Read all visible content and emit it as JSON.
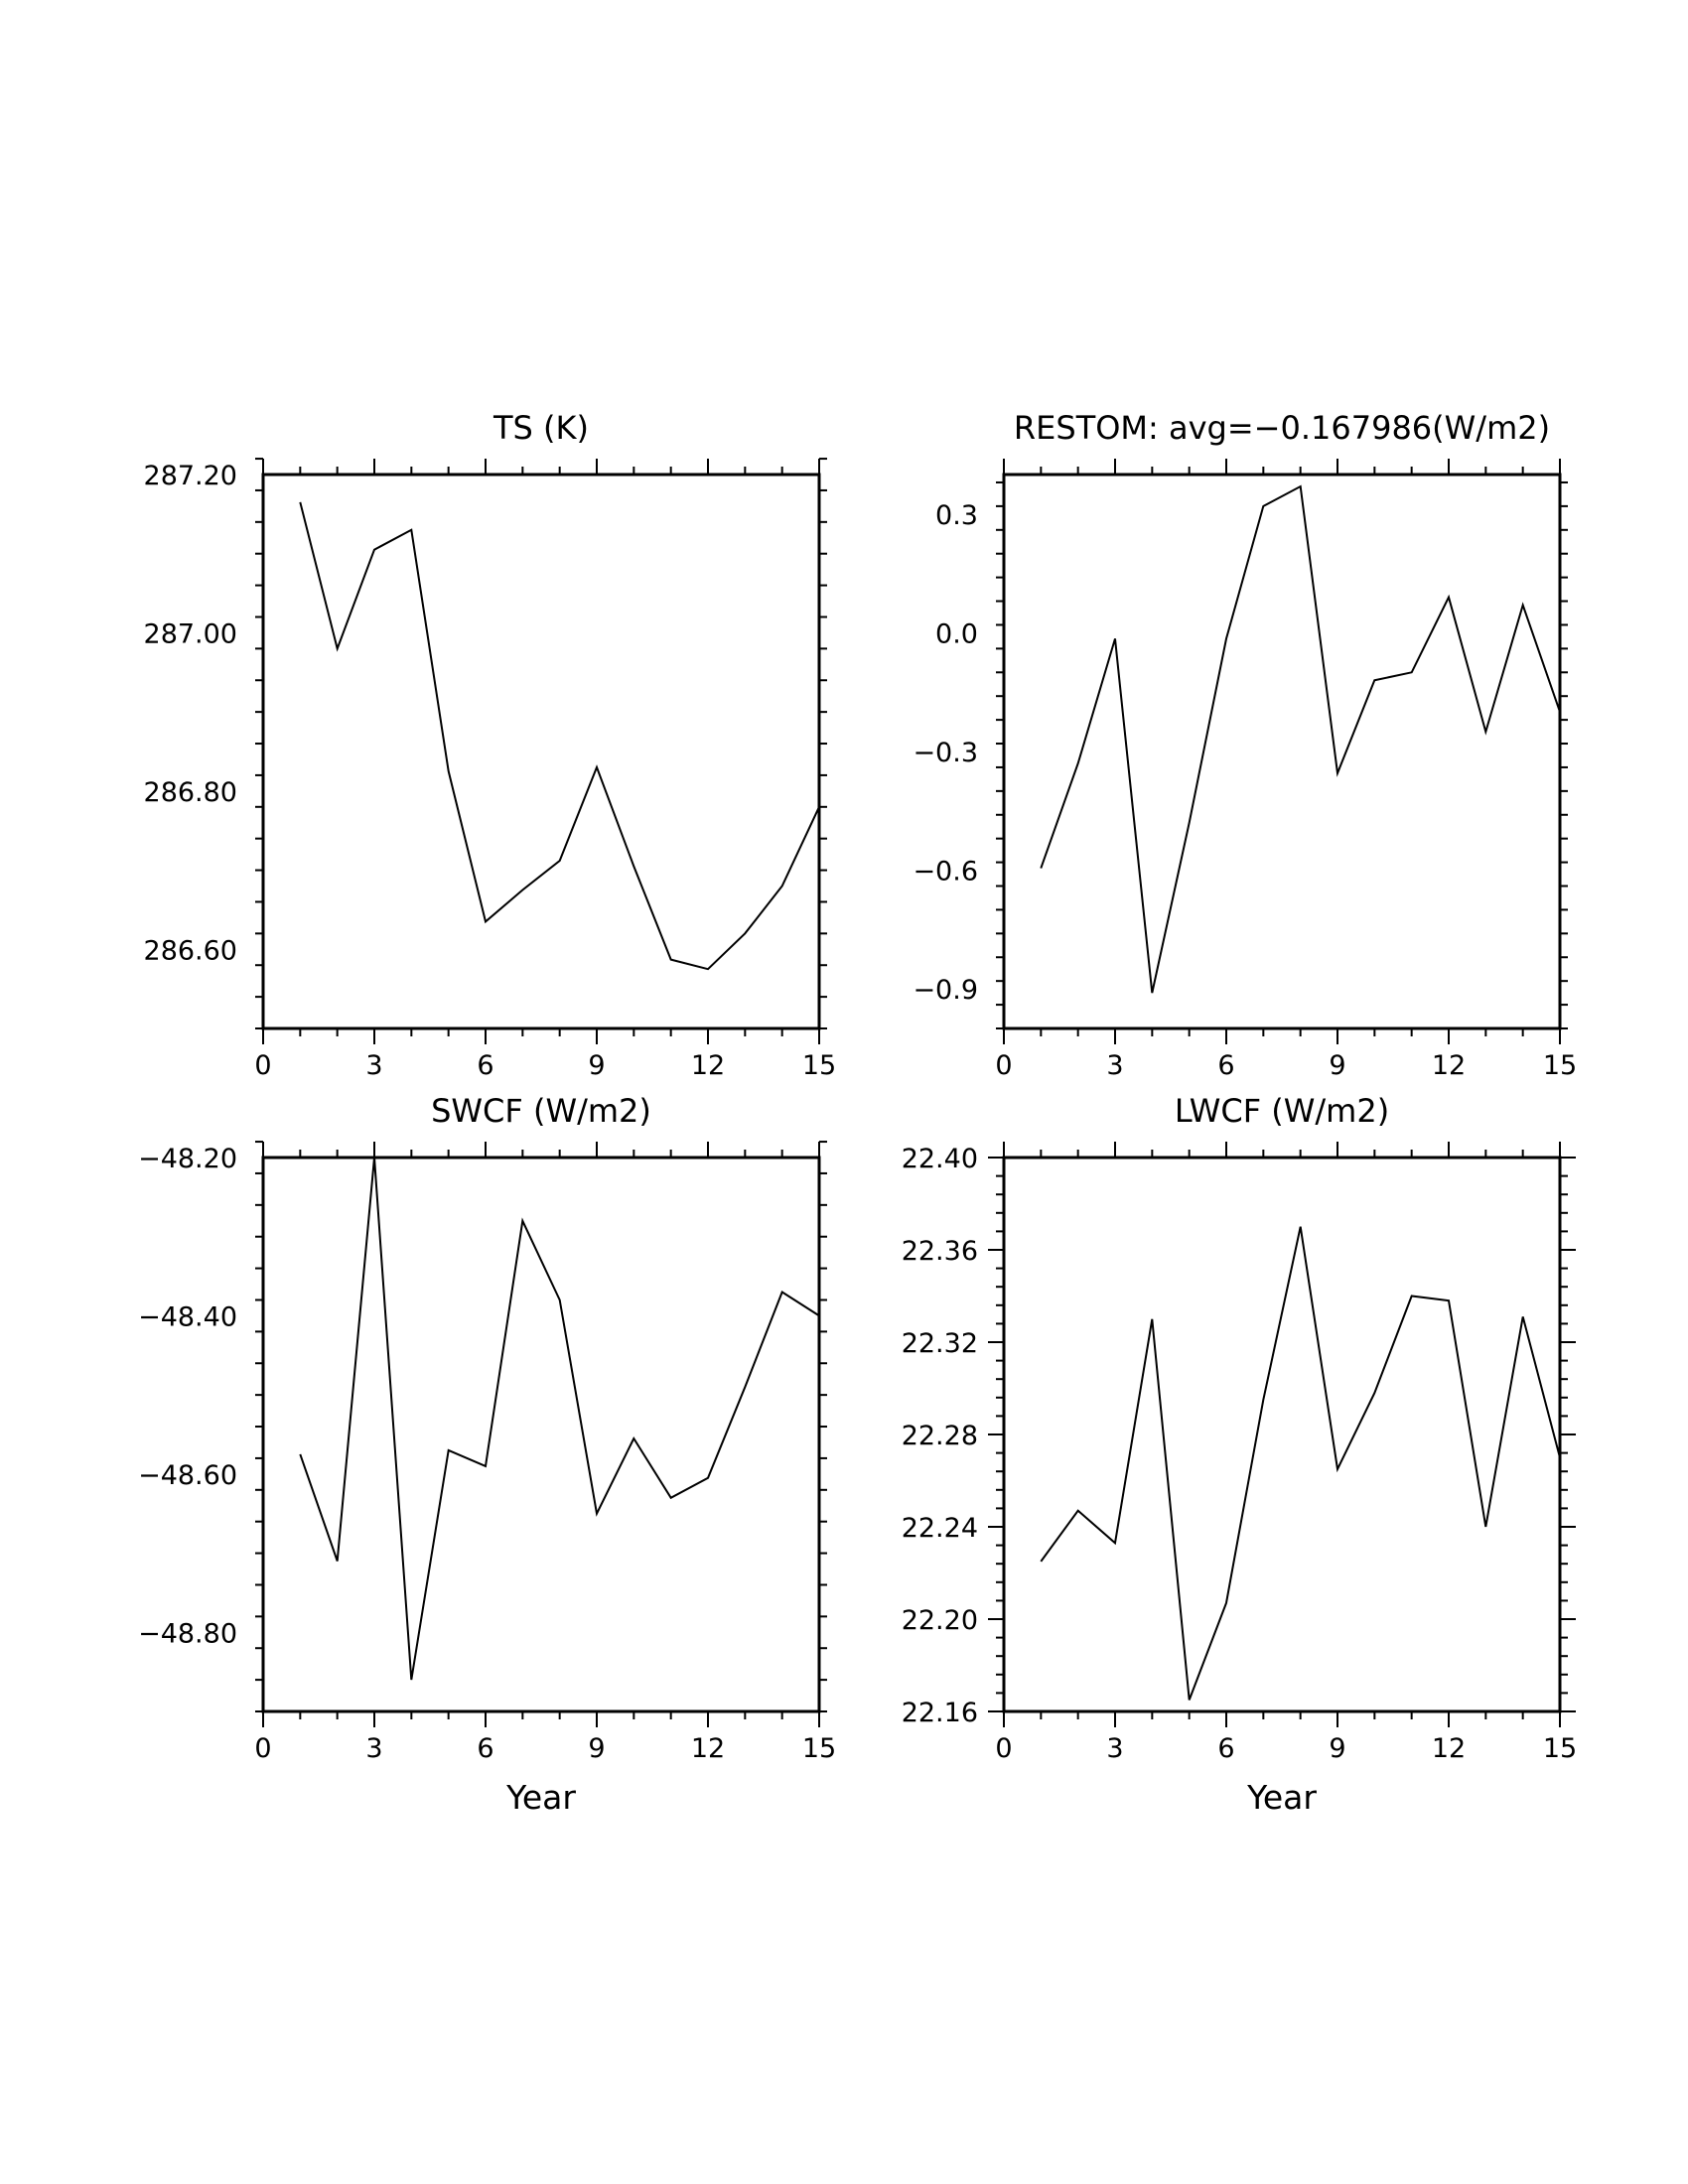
{
  "chart_data": [
    {
      "type": "line",
      "title": "TS (K)",
      "xlabel": "",
      "ylabel": "",
      "xlim": [
        0,
        15
      ],
      "ylim": [
        286.5,
        287.2
      ],
      "xticks": [
        "0",
        "3",
        "6",
        "9",
        "12",
        "15"
      ],
      "yticks": [
        "287.20",
        "287.00",
        "286.80",
        "286.60"
      ],
      "x": [
        1,
        2,
        3,
        4,
        5,
        6,
        7,
        8,
        9,
        10,
        11,
        12,
        13,
        14,
        15
      ],
      "series": [
        {
          "values": [
            287.165,
            286.98,
            287.105,
            287.13,
            286.825,
            286.635,
            286.675,
            286.712,
            286.83,
            286.705,
            286.587,
            286.575,
            286.62,
            286.68,
            286.78
          ]
        }
      ]
    },
    {
      "type": "line",
      "title": "RESTOM: avg=−0.167986(W/m2)",
      "xlabel": "",
      "ylabel": "",
      "xlim": [
        0,
        15
      ],
      "ylim": [
        -1.0,
        0.4
      ],
      "xticks": [
        "0",
        "3",
        "6",
        "9",
        "12",
        "15"
      ],
      "yticks": [
        "0.3",
        "0.0",
        "−0.3",
        "−0.6",
        "−0.9"
      ],
      "x": [
        1,
        2,
        3,
        4,
        5,
        6,
        7,
        8,
        9,
        10,
        11,
        12,
        13,
        14,
        15
      ],
      "series": [
        {
          "values": [
            -0.595,
            -0.33,
            -0.015,
            -0.91,
            -0.48,
            -0.015,
            0.32,
            0.37,
            -0.355,
            -0.12,
            -0.1,
            0.09,
            -0.25,
            0.07,
            -0.2
          ]
        }
      ]
    },
    {
      "type": "line",
      "title": "SWCF (W/m2)",
      "xlabel": "Year",
      "ylabel": "",
      "xlim": [
        0,
        15
      ],
      "ylim": [
        -48.9,
        -48.2
      ],
      "xticks": [
        "0",
        "3",
        "6",
        "9",
        "12",
        "15"
      ],
      "yticks": [
        "−48.20",
        "−48.40",
        "−48.60",
        "−48.80"
      ],
      "x": [
        1,
        2,
        3,
        4,
        5,
        6,
        7,
        8,
        9,
        10,
        11,
        12,
        13,
        14,
        15
      ],
      "series": [
        {
          "values": [
            -48.575,
            -48.71,
            -48.2,
            -48.86,
            -48.57,
            -48.59,
            -48.28,
            -48.38,
            -48.65,
            -48.555,
            -48.63,
            -48.605,
            -48.49,
            -48.37,
            -48.4
          ]
        }
      ]
    },
    {
      "type": "line",
      "title": "LWCF (W/m2)",
      "xlabel": "Year",
      "ylabel": "",
      "xlim": [
        0,
        15
      ],
      "ylim": [
        22.16,
        22.4
      ],
      "xticks": [
        "0",
        "3",
        "6",
        "9",
        "12",
        "15"
      ],
      "yticks": [
        "22.40",
        "22.36",
        "22.32",
        "22.28",
        "22.24",
        "22.20",
        "22.16"
      ],
      "x": [
        1,
        2,
        3,
        4,
        5,
        6,
        7,
        8,
        9,
        10,
        11,
        12,
        13,
        14,
        15
      ],
      "series": [
        {
          "values": [
            22.225,
            22.247,
            22.233,
            22.33,
            22.165,
            22.207,
            22.295,
            22.37,
            22.265,
            22.298,
            22.34,
            22.338,
            22.24,
            22.331,
            22.27
          ]
        }
      ]
    }
  ]
}
